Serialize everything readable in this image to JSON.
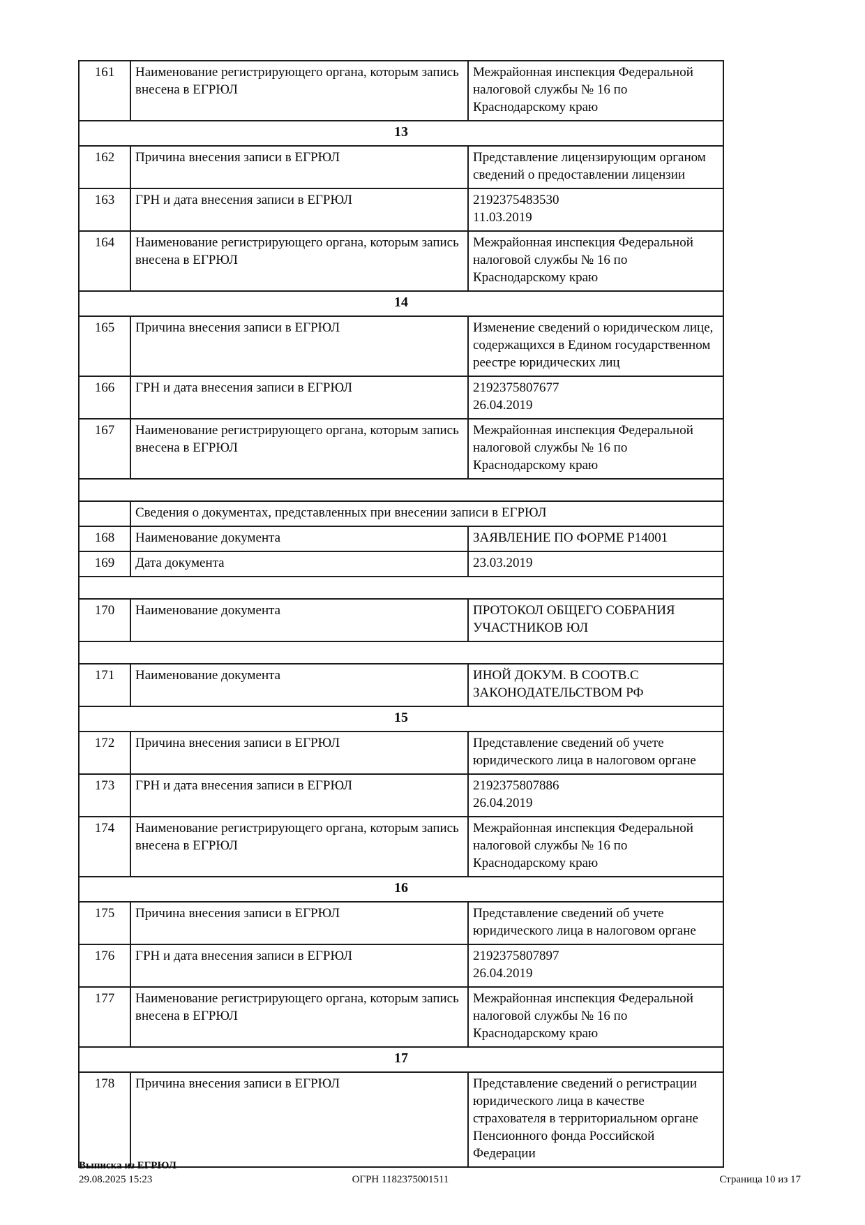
{
  "footer": {
    "doc_title": "Выписка из ЕГРЮЛ",
    "datetime": "29.08.2025 15:23",
    "ogrn": "ОГРН 1182375001511",
    "page_info": "Страница 10 из 17"
  },
  "table": {
    "rows": [
      {
        "type": "item",
        "num": "161",
        "label": "Наименование регистрирующего органа, которым запись внесена в ЕГРЮЛ",
        "value": "Межрайонная инспекция Федеральной налоговой службы № 16 по Краснодарскому краю"
      },
      {
        "type": "section",
        "title": "13"
      },
      {
        "type": "item",
        "num": "162",
        "label": "Причина внесения записи в ЕГРЮЛ",
        "value": "Представление лицензирующим органом сведений о предоставлении лицензии"
      },
      {
        "type": "item",
        "num": "163",
        "label": "ГРН и дата внесения записи в ЕГРЮЛ",
        "value": "2192375483530\n11.03.2019"
      },
      {
        "type": "item",
        "num": "164",
        "label": "Наименование регистрирующего органа, которым запись внесена в ЕГРЮЛ",
        "value": "Межрайонная инспекция Федеральной налоговой службы № 16 по Краснодарскому краю"
      },
      {
        "type": "section",
        "title": "14"
      },
      {
        "type": "item",
        "num": "165",
        "label": "Причина внесения записи в ЕГРЮЛ",
        "value": "Изменение сведений о юридическом лице, содержащихся в Едином государственном реестре юридических лиц"
      },
      {
        "type": "item",
        "num": "166",
        "label": "ГРН и дата внесения записи в ЕГРЮЛ",
        "value": "2192375807677\n26.04.2019"
      },
      {
        "type": "item",
        "num": "167",
        "label": "Наименование регистрирующего органа, которым запись внесена в ЕГРЮЛ",
        "value": "Межрайонная инспекция Федеральной налоговой службы № 16 по Краснодарскому краю"
      },
      {
        "type": "spacer"
      },
      {
        "type": "subheader",
        "title": "Сведения о документах, представленных при внесении записи в ЕГРЮЛ"
      },
      {
        "type": "item",
        "num": "168",
        "label": "Наименование документа",
        "value": "ЗАЯВЛЕНИЕ ПО ФОРМЕ Р14001"
      },
      {
        "type": "item",
        "num": "169",
        "label": "Дата документа",
        "value": "23.03.2019"
      },
      {
        "type": "spacer"
      },
      {
        "type": "item",
        "num": "170",
        "label": "Наименование документа",
        "value": "ПРОТОКОЛ ОБЩЕГО СОБРАНИЯ УЧАСТНИКОВ ЮЛ"
      },
      {
        "type": "spacer"
      },
      {
        "type": "item",
        "num": "171",
        "label": "Наименование документа",
        "value": "ИНОЙ ДОКУМ. В СООТВ.С ЗАКОНОДАТЕЛЬСТВОМ РФ"
      },
      {
        "type": "section",
        "title": "15"
      },
      {
        "type": "item",
        "num": "172",
        "label": "Причина внесения записи в ЕГРЮЛ",
        "value": "Представление сведений об учете юридического лица в налоговом органе"
      },
      {
        "type": "item",
        "num": "173",
        "label": "ГРН и дата внесения записи в ЕГРЮЛ",
        "value": "2192375807886\n26.04.2019"
      },
      {
        "type": "item",
        "num": "174",
        "label": "Наименование регистрирующего органа, которым запись внесена в ЕГРЮЛ",
        "value": "Межрайонная инспекция Федеральной налоговой службы № 16 по Краснодарскому краю"
      },
      {
        "type": "section",
        "title": "16"
      },
      {
        "type": "item",
        "num": "175",
        "label": "Причина внесения записи в ЕГРЮЛ",
        "value": "Представление сведений об учете юридического лица в налоговом органе"
      },
      {
        "type": "item",
        "num": "176",
        "label": "ГРН и дата внесения записи в ЕГРЮЛ",
        "value": "2192375807897\n26.04.2019"
      },
      {
        "type": "item",
        "num": "177",
        "label": "Наименование регистрирующего органа, которым запись внесена в ЕГРЮЛ",
        "value": "Межрайонная инспекция Федеральной налоговой службы № 16 по Краснодарскому краю"
      },
      {
        "type": "section",
        "title": "17"
      },
      {
        "type": "item",
        "num": "178",
        "label": "Причина внесения записи в ЕГРЮЛ",
        "value": "Представление сведений о регистрации юридического лица в качестве страхователя в территориальном органе Пенсионного фонда Российской Федерации"
      }
    ]
  }
}
